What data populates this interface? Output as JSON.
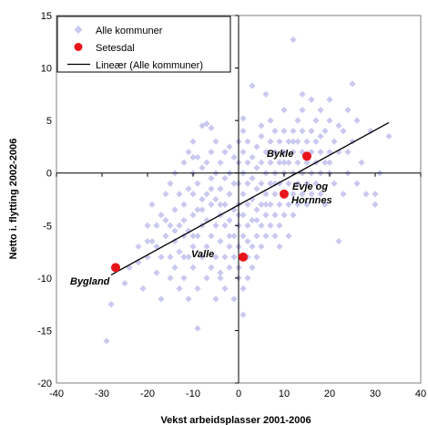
{
  "chart_data": {
    "type": "scatter",
    "title": "",
    "xlabel": "Vekst arbeidsplasser 2001-2006",
    "ylabel": "Netto i. flytting 2002-2006",
    "xlim": [
      -40,
      40
    ],
    "ylim": [
      -20,
      15
    ],
    "xticks": [
      "-40",
      "-30",
      "-20",
      "-10",
      "0",
      "10",
      "20",
      "30",
      "40"
    ],
    "yticks": [
      "15",
      "10",
      "5",
      "0",
      "-5",
      "-10",
      "-15",
      "-20"
    ],
    "grid": false,
    "legend_position": "top-left",
    "legend": [
      {
        "label": "Alle kommuner",
        "marker": "diamond",
        "color": "#c9c9f0"
      },
      {
        "label": "Setesdal",
        "marker": "circle",
        "color": "#e8141b"
      },
      {
        "label": "Lineær (Alle kommuner)",
        "marker": "line",
        "color": "#000000"
      }
    ],
    "series": [
      {
        "name": "Alle kommuner",
        "marker": "diamond",
        "color": "#c9c9f0",
        "points": [
          [
            -29,
            -16
          ],
          [
            -28,
            -12.5
          ],
          [
            -25,
            -10.5
          ],
          [
            -24,
            -9
          ],
          [
            -22,
            -8.5
          ],
          [
            -21,
            -11
          ],
          [
            -20,
            -8
          ],
          [
            -20,
            -5
          ],
          [
            -19,
            -6.5
          ],
          [
            -19,
            -3
          ],
          [
            -18,
            -9.5
          ],
          [
            -18,
            -7
          ],
          [
            -17,
            -4
          ],
          [
            -17,
            -12
          ],
          [
            -16,
            -6
          ],
          [
            -16,
            -2
          ],
          [
            -15,
            -8
          ],
          [
            -15,
            -5
          ],
          [
            -15,
            -1
          ],
          [
            -14,
            -9
          ],
          [
            -14,
            -3.5
          ],
          [
            -14,
            0
          ],
          [
            -13,
            -7.5
          ],
          [
            -13,
            -5
          ],
          [
            -13,
            -2
          ],
          [
            -12,
            -10
          ],
          [
            -12,
            -6
          ],
          [
            -12,
            -3
          ],
          [
            -12,
            1
          ],
          [
            -11,
            -8
          ],
          [
            -11,
            -5.5
          ],
          [
            -11,
            -1.5
          ],
          [
            -11,
            2
          ],
          [
            -10,
            -9
          ],
          [
            -10,
            -7
          ],
          [
            -10,
            -4
          ],
          [
            -10,
            -2
          ],
          [
            -10,
            0
          ],
          [
            -10,
            3
          ],
          [
            -9,
            -11
          ],
          [
            -9,
            -6
          ],
          [
            -9,
            -3.5
          ],
          [
            -9,
            -1
          ],
          [
            -9,
            1.5
          ],
          [
            -9,
            -14.8
          ],
          [
            -8,
            -8
          ],
          [
            -8,
            -5
          ],
          [
            -8,
            -2.5
          ],
          [
            -8,
            0.5
          ],
          [
            -8,
            4.5
          ],
          [
            -7,
            -10
          ],
          [
            -7,
            -7
          ],
          [
            -7,
            -4.5
          ],
          [
            -7,
            -2
          ],
          [
            -7,
            1
          ],
          [
            -7,
            4.7
          ],
          [
            -6,
            -9
          ],
          [
            -6,
            -6
          ],
          [
            -6,
            -3
          ],
          [
            -6,
            -0.5
          ],
          [
            -6,
            2
          ],
          [
            -5,
            -12
          ],
          [
            -5,
            -8
          ],
          [
            -5,
            -5
          ],
          [
            -5,
            -2.5
          ],
          [
            -5,
            0
          ],
          [
            -5,
            3
          ],
          [
            -4,
            -10
          ],
          [
            -4,
            -6.5
          ],
          [
            -4,
            -4
          ],
          [
            -4,
            -1.5
          ],
          [
            -4,
            1
          ],
          [
            -4,
            -9.5
          ],
          [
            -3,
            -8
          ],
          [
            -3,
            -5
          ],
          [
            -3,
            -3
          ],
          [
            -3,
            -0.5
          ],
          [
            -3,
            2
          ],
          [
            -3,
            -11
          ],
          [
            -2,
            -7
          ],
          [
            -2,
            -4.5
          ],
          [
            -2,
            -2
          ],
          [
            -2,
            0
          ],
          [
            -2,
            2.5
          ],
          [
            -2,
            -9
          ],
          [
            -1,
            -6
          ],
          [
            -1,
            -3.5
          ],
          [
            -1,
            -1
          ],
          [
            -1,
            1.5
          ],
          [
            -1,
            -8
          ],
          [
            -1,
            -12
          ],
          [
            0,
            -5
          ],
          [
            0,
            -3
          ],
          [
            0,
            -1
          ],
          [
            0,
            1
          ],
          [
            0,
            3
          ],
          [
            0,
            -7
          ],
          [
            0,
            -9
          ],
          [
            0,
            -10
          ],
          [
            1,
            -6
          ],
          [
            1,
            -4
          ],
          [
            1,
            -2
          ],
          [
            1,
            0
          ],
          [
            1,
            2
          ],
          [
            1,
            4
          ],
          [
            1,
            -13.5
          ],
          [
            1,
            5.2
          ],
          [
            1,
            -11
          ],
          [
            2,
            -5
          ],
          [
            2,
            -3
          ],
          [
            2,
            -1
          ],
          [
            2,
            1
          ],
          [
            2,
            3
          ],
          [
            2,
            -8
          ],
          [
            2,
            -10
          ],
          [
            3,
            -4.5
          ],
          [
            3,
            -2.5
          ],
          [
            3,
            -0.5
          ],
          [
            3,
            1.5
          ],
          [
            3,
            -7
          ],
          [
            3,
            -9
          ],
          [
            3,
            8.3
          ],
          [
            4,
            -6
          ],
          [
            4,
            -3.5
          ],
          [
            4,
            -1.5
          ],
          [
            4,
            0.5
          ],
          [
            4,
            2.5
          ],
          [
            4,
            -8
          ],
          [
            5,
            -5
          ],
          [
            5,
            -3
          ],
          [
            5,
            -1
          ],
          [
            5,
            1
          ],
          [
            5,
            3.5
          ],
          [
            5,
            -7
          ],
          [
            5,
            4.5
          ],
          [
            6,
            -4
          ],
          [
            6,
            -2
          ],
          [
            6,
            0
          ],
          [
            6,
            2
          ],
          [
            6,
            -6
          ],
          [
            6,
            7.5
          ],
          [
            7,
            -5
          ],
          [
            7,
            -3
          ],
          [
            7,
            -1
          ],
          [
            7,
            1
          ],
          [
            7,
            3
          ],
          [
            7,
            5
          ],
          [
            8,
            -4
          ],
          [
            8,
            -2
          ],
          [
            8,
            0
          ],
          [
            8,
            2
          ],
          [
            8,
            -6
          ],
          [
            8,
            4
          ],
          [
            9,
            -3
          ],
          [
            9,
            -1
          ],
          [
            9,
            1
          ],
          [
            9,
            3
          ],
          [
            9,
            -5
          ],
          [
            9,
            -7
          ],
          [
            10,
            -2
          ],
          [
            10,
            0
          ],
          [
            10,
            2
          ],
          [
            10,
            4
          ],
          [
            10,
            -4
          ],
          [
            10,
            6
          ],
          [
            11,
            -3
          ],
          [
            11,
            -1
          ],
          [
            11,
            1
          ],
          [
            11,
            3
          ],
          [
            11,
            -6
          ],
          [
            12,
            -2
          ],
          [
            12,
            0
          ],
          [
            12,
            2
          ],
          [
            12,
            4
          ],
          [
            12,
            -4
          ],
          [
            12,
            12.7
          ],
          [
            13,
            -1
          ],
          [
            13,
            1
          ],
          [
            13,
            3
          ],
          [
            13,
            5
          ],
          [
            13,
            -3
          ],
          [
            14,
            0
          ],
          [
            14,
            2
          ],
          [
            14,
            -2
          ],
          [
            14,
            4
          ],
          [
            15,
            -1
          ],
          [
            15,
            1
          ],
          [
            15,
            3
          ],
          [
            15,
            -3
          ],
          [
            16,
            0
          ],
          [
            16,
            2
          ],
          [
            16,
            -2
          ],
          [
            17,
            1
          ],
          [
            17,
            3
          ],
          [
            17,
            -1
          ],
          [
            17,
            5
          ],
          [
            18,
            0
          ],
          [
            18,
            2
          ],
          [
            18,
            -2
          ],
          [
            19,
            1
          ],
          [
            19,
            4
          ],
          [
            19,
            -3
          ],
          [
            20,
            0
          ],
          [
            20,
            2
          ],
          [
            20,
            5
          ],
          [
            21,
            -1
          ],
          [
            21,
            3
          ],
          [
            22,
            2
          ],
          [
            22,
            -6.5
          ],
          [
            23,
            4
          ],
          [
            23,
            -2
          ],
          [
            24,
            0
          ],
          [
            24,
            6
          ],
          [
            25,
            3
          ],
          [
            25,
            8.5
          ],
          [
            26,
            5
          ],
          [
            26,
            -1
          ],
          [
            27,
            1
          ],
          [
            28,
            -2
          ],
          [
            29,
            4
          ],
          [
            30,
            -3
          ],
          [
            30,
            -2
          ],
          [
            31,
            0
          ],
          [
            33,
            3.5
          ],
          [
            -17,
            -8
          ],
          [
            -15,
            -10
          ],
          [
            -13,
            -11
          ],
          [
            -11,
            -12
          ],
          [
            -16,
            -4.5
          ],
          [
            -14,
            -6.5
          ],
          [
            -12,
            -4.5
          ],
          [
            -10,
            -6
          ],
          [
            -8,
            -3.5
          ],
          [
            -6,
            -1.5
          ],
          [
            -4,
            -3
          ],
          [
            -2,
            -6
          ],
          [
            0,
            -4
          ],
          [
            2,
            -6.5
          ],
          [
            4,
            -4.5
          ],
          [
            6,
            -3
          ],
          [
            8,
            -1
          ],
          [
            10,
            1
          ],
          [
            12,
            3
          ],
          [
            14,
            6
          ],
          [
            16,
            4
          ],
          [
            18,
            3.5
          ],
          [
            20,
            1
          ],
          [
            22,
            4.5
          ],
          [
            24,
            2
          ],
          [
            18,
            6
          ],
          [
            20,
            7
          ],
          [
            16,
            7
          ],
          [
            14,
            7.5
          ],
          [
            -6,
            4.3
          ],
          [
            -10,
            1.5
          ],
          [
            -12,
            -8
          ],
          [
            -14,
            -5.5
          ],
          [
            -18,
            -5
          ],
          [
            -20,
            -6.5
          ],
          [
            -22,
            -7
          ]
        ]
      },
      {
        "name": "Setesdal",
        "marker": "circle",
        "color": "#e8141b",
        "points": [
          {
            "x": 15,
            "y": 1.6,
            "label": "Bykle"
          },
          {
            "x": 10,
            "y": -2,
            "label": "Evje og Hornnes"
          },
          {
            "x": 1,
            "y": -8,
            "label": "Valle"
          },
          {
            "x": -27,
            "y": -9,
            "label": "Bygland"
          }
        ]
      }
    ],
    "trendline": {
      "name": "Lineær (Alle kommuner)",
      "color": "#000000",
      "x": [
        -28,
        33
      ],
      "y": [
        -9.7,
        4.8
      ]
    },
    "annotations": [
      "Bykle",
      "Evje og",
      "Hornnes",
      "Valle",
      "Bygland"
    ]
  }
}
